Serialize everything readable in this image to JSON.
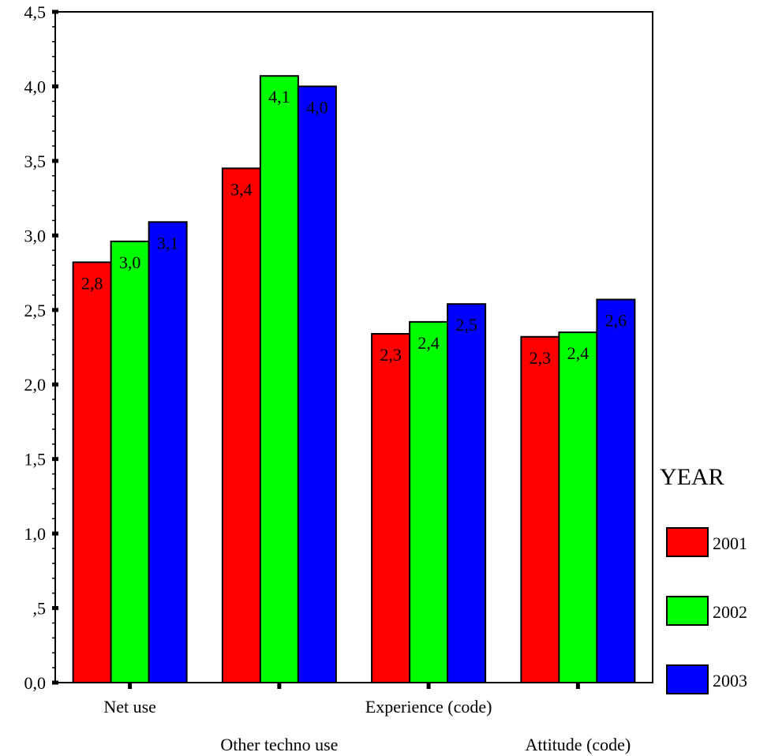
{
  "chart_data": {
    "type": "bar",
    "categories": [
      "Net use",
      "Other techno use",
      "Experience (code)",
      "Attitude (code)"
    ],
    "series": [
      {
        "name": "2001",
        "color": "#ff0000",
        "values": [
          2.82,
          3.45,
          2.34,
          2.32
        ],
        "labels": [
          "2,8",
          "3,4",
          "2,3",
          "2,3"
        ]
      },
      {
        "name": "2002",
        "color": "#00ff00",
        "values": [
          2.96,
          4.07,
          2.42,
          2.35
        ],
        "labels": [
          "3,0",
          "4,1",
          "2,4",
          "2,4"
        ]
      },
      {
        "name": "2003",
        "color": "#0000ff",
        "values": [
          3.09,
          4.0,
          2.54,
          2.57
        ],
        "labels": [
          "3,1",
          "4,0",
          "2,5",
          "2,6"
        ]
      }
    ],
    "ylim": [
      0,
      4.5
    ],
    "yticks": [
      0,
      0.5,
      1.0,
      1.5,
      2.0,
      2.5,
      3.0,
      3.5,
      4.0,
      4.5
    ],
    "ytick_labels": [
      "0,0",
      ",5",
      "1,0",
      "1,5",
      "2,0",
      "2,5",
      "3,0",
      "3,5",
      "4,0",
      "4,5"
    ],
    "legend_title": "YEAR",
    "legend_position": "right",
    "grid": false
  }
}
